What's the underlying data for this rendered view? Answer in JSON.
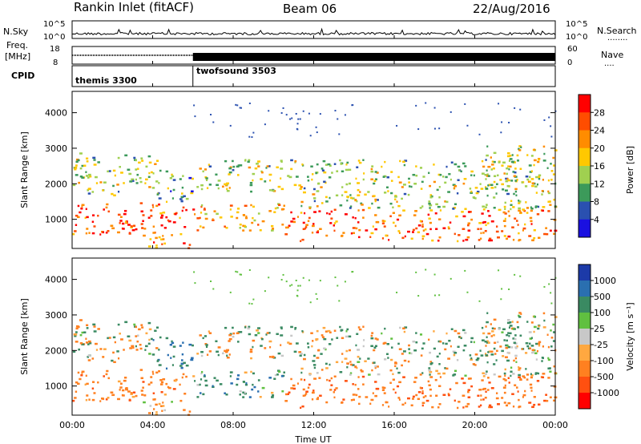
{
  "header": {
    "station": "Rankin Inlet (fitACF)",
    "beam": "Beam 06",
    "date": "22/Aug/2016"
  },
  "panels": {
    "noise": {
      "left_label": "N.Sky",
      "left_ticks": [
        "10^5",
        "10^0"
      ],
      "right_ticks": [
        "10^5",
        "10^0"
      ],
      "right_label": "N.Search",
      "right_dots": "........"
    },
    "freq": {
      "left_label_1": "Freq.",
      "left_label_2": "[MHz]",
      "left_ticks": [
        "18",
        "8"
      ],
      "right_ticks": [
        "60",
        "0"
      ],
      "right_label": "Nave",
      "right_dots": "...."
    },
    "cpid": {
      "label": "CPID",
      "segments": [
        {
          "name": "themis 3300",
          "start_hour": 0
        },
        {
          "name": "twofsound 3503",
          "start_hour": 6
        }
      ]
    },
    "power": {
      "ylabel": "Slant Range [km]",
      "colorbar_label": "Power [dB]",
      "colorbar_ticks": [
        "28",
        "24",
        "20",
        "16",
        "12",
        "8",
        "4"
      ],
      "colorbar_colors": [
        "#ff0000",
        "#ff4d00",
        "#ff8c00",
        "#ffc800",
        "#a0d050",
        "#3c9a5a",
        "#2a50b0",
        "#1a10e0"
      ]
    },
    "velocity": {
      "ylabel": "Slant Range [km]",
      "colorbar_label": "Velocity [m s⁻¹]",
      "colorbar_ticks": [
        "1000",
        "500",
        "100",
        "25",
        "-25",
        "-100",
        "-500",
        "-1000"
      ],
      "colorbar_colors": [
        "#1c3aa8",
        "#2a6fb0",
        "#3a8a62",
        "#60c040",
        "#c8c8c8",
        "#ffa840",
        "#ff8020",
        "#ff5010",
        "#ff0000"
      ]
    }
  },
  "xaxis": {
    "label": "Time UT",
    "ticks": [
      "00:00",
      "04:00",
      "08:00",
      "12:00",
      "16:00",
      "20:00",
      "00:00"
    ]
  },
  "chart_data": {
    "type": "heatmap",
    "title": "Rankin Inlet (fitACF)",
    "subtitle": "Beam 06",
    "date": "22/Aug/2016",
    "x_range_hours": [
      0,
      24
    ],
    "xlabel": "Time UT",
    "xticks": [
      "00:00",
      "04:00",
      "08:00",
      "12:00",
      "16:00",
      "20:00",
      "00:00"
    ],
    "ylabel": "Slant Range [km]",
    "ylim_km": [
      180,
      4600
    ],
    "yticks_km": [
      1000,
      2000,
      3000,
      4000
    ],
    "cpid_segments": [
      {
        "name": "themis 3300",
        "start_hour": 0,
        "end_hour": 6
      },
      {
        "name": "twofsound 3503",
        "start_hour": 6,
        "end_hour": 24
      }
    ],
    "frequency_mhz_range": [
      8,
      18
    ],
    "nave_range": [
      0,
      60
    ],
    "noise_log_range": [
      0,
      5
    ],
    "power_colorscale": {
      "label": "Power [dB]",
      "ticks": [
        4,
        8,
        12,
        16,
        20,
        24,
        28
      ]
    },
    "velocity_colorscale": {
      "label": "Velocity [m s-1]",
      "ticks": [
        -1000,
        -500,
        -100,
        -25,
        25,
        100,
        500,
        1000
      ]
    },
    "scatter_regions": [
      {
        "t0": 0.0,
        "t1": 6.0,
        "r0": 600,
        "r1": 1500,
        "power": 24,
        "velocity": -300
      },
      {
        "t0": 0.0,
        "t1": 4.2,
        "r0": 1700,
        "r1": 2900,
        "power": 12,
        "velocity": 0
      },
      {
        "t0": 3.5,
        "t1": 6.0,
        "r0": 200,
        "r1": 600,
        "power": 22,
        "velocity": -200
      },
      {
        "t0": 4.0,
        "t1": 6.0,
        "r0": 1500,
        "r1": 2400,
        "power": 8,
        "velocity": 300
      },
      {
        "t0": 6.0,
        "t1": 10.5,
        "r0": 700,
        "r1": 1500,
        "power": 18,
        "velocity": 200
      },
      {
        "t0": 6.0,
        "t1": 11.0,
        "r0": 1800,
        "r1": 2700,
        "power": 12,
        "velocity": 0
      },
      {
        "t0": 10.5,
        "t1": 24.0,
        "r0": 400,
        "r1": 1300,
        "power": 22,
        "velocity": -400
      },
      {
        "t0": 11.0,
        "t1": 24.0,
        "r0": 1300,
        "r1": 2700,
        "power": 12,
        "velocity": 0
      },
      {
        "t0": 20.5,
        "t1": 24.0,
        "r0": 1800,
        "r1": 3100,
        "power": 14,
        "velocity": 0
      }
    ]
  }
}
